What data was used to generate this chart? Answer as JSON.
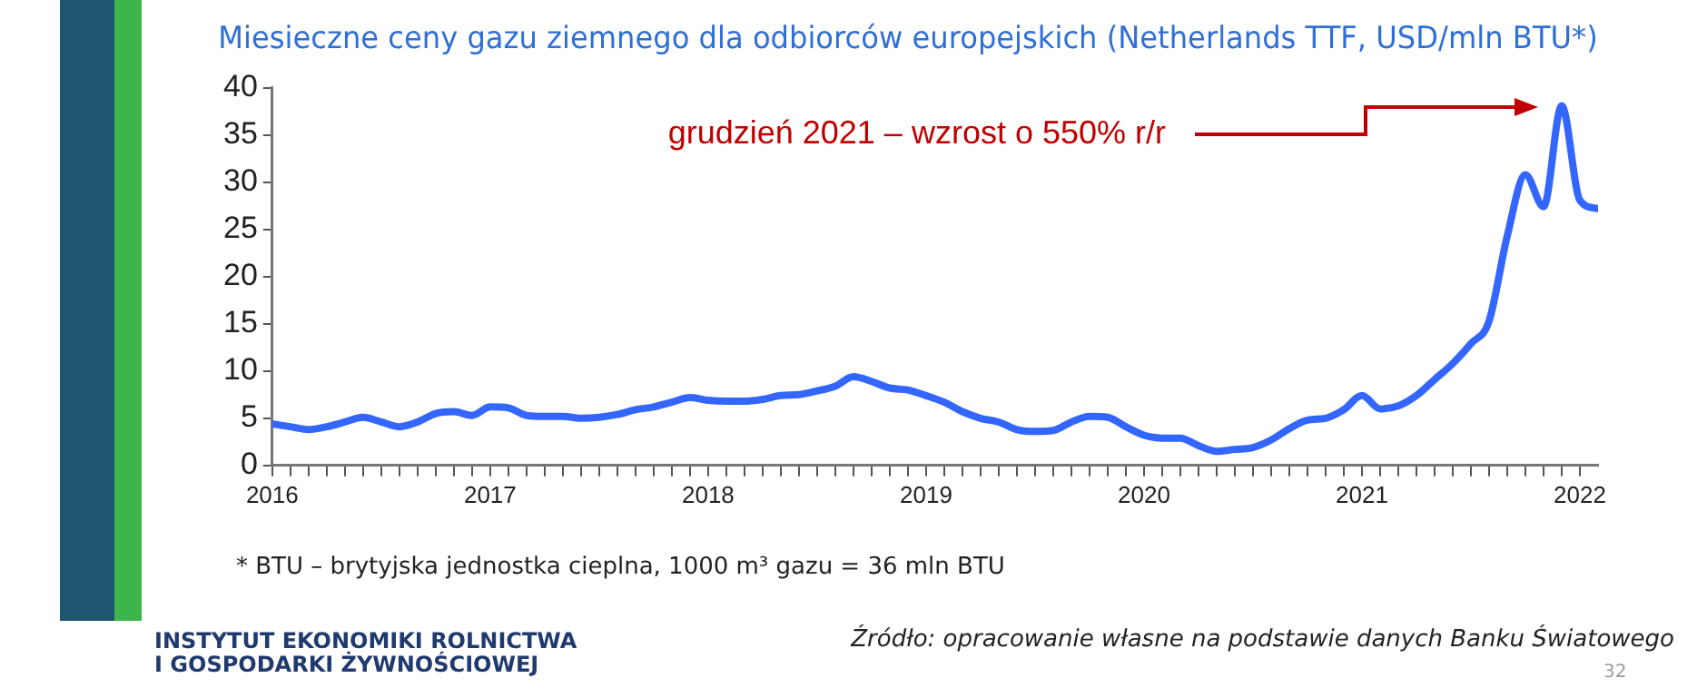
{
  "chart_data": {
    "type": "line",
    "title": "Miesieczne ceny gazu ziemnego dla odbiorców europejskich (Netherlands TTF, USD/mln BTU*)",
    "x": [
      "2016-01",
      "2016-02",
      "2016-03",
      "2016-04",
      "2016-05",
      "2016-06",
      "2016-07",
      "2016-08",
      "2016-09",
      "2016-10",
      "2016-11",
      "2016-12",
      "2017-01",
      "2017-02",
      "2017-03",
      "2017-04",
      "2017-05",
      "2017-06",
      "2017-07",
      "2017-08",
      "2017-09",
      "2017-10",
      "2017-11",
      "2017-12",
      "2018-01",
      "2018-02",
      "2018-03",
      "2018-04",
      "2018-05",
      "2018-06",
      "2018-07",
      "2018-08",
      "2018-09",
      "2018-10",
      "2018-11",
      "2018-12",
      "2019-01",
      "2019-02",
      "2019-03",
      "2019-04",
      "2019-05",
      "2019-06",
      "2019-07",
      "2019-08",
      "2019-09",
      "2019-10",
      "2019-11",
      "2019-12",
      "2020-01",
      "2020-02",
      "2020-03",
      "2020-04",
      "2020-05",
      "2020-06",
      "2020-07",
      "2020-08",
      "2020-09",
      "2020-10",
      "2020-11",
      "2020-12",
      "2021-01",
      "2021-02",
      "2021-03",
      "2021-04",
      "2021-05",
      "2021-06",
      "2021-07",
      "2021-08",
      "2021-09",
      "2021-10",
      "2021-11",
      "2021-12",
      "2022-01",
      "2022-02"
    ],
    "series": [
      {
        "color": "#3366ff",
        "values": [
          4.4,
          4.1,
          3.8,
          4.1,
          4.6,
          5.1,
          4.6,
          4.1,
          4.6,
          5.5,
          5.7,
          5.3,
          6.2,
          6.1,
          5.3,
          5.2,
          5.2,
          5.0,
          5.1,
          5.4,
          5.9,
          6.2,
          6.7,
          7.2,
          6.9,
          6.8,
          6.8,
          7.0,
          7.4,
          7.5,
          7.9,
          8.4,
          9.4,
          8.9,
          8.2,
          8.0,
          7.4,
          6.7,
          5.7,
          5.0,
          4.6,
          3.8,
          3.6,
          3.7,
          4.6,
          5.2,
          5.1,
          4.1,
          3.2,
          2.9,
          2.9,
          2.1,
          1.5,
          1.7,
          1.9,
          2.7,
          3.9,
          4.8,
          5.0,
          5.9,
          7.4,
          6.0,
          6.3,
          7.4,
          9.1,
          10.8,
          12.9,
          15.3,
          24.3,
          30.8,
          27.4,
          38.1,
          28.1,
          27.2
        ]
      }
    ],
    "xlim": [
      "2016",
      "2022-02"
    ],
    "xticks": [
      "2016",
      {
        "value": "2016-02",
        "label": null
      },
      {
        "value": "2016-03",
        "label": null
      },
      {
        "value": "2016-04",
        "label": null
      },
      {
        "value": "2016-05",
        "label": null
      },
      {
        "value": "2016-06",
        "label": null
      },
      {
        "value": "2016-07",
        "label": null
      },
      {
        "value": "2016-08",
        "label": null
      },
      {
        "value": "2016-09",
        "label": null
      },
      {
        "value": "2016-10",
        "label": null
      },
      {
        "value": "2016-11",
        "label": null
      },
      {
        "value": "2016-12",
        "label": null
      },
      "2017",
      {
        "value": "2017-02",
        "label": null
      },
      {
        "value": "2017-03",
        "label": null
      },
      {
        "value": "2017-04",
        "label": null
      },
      {
        "value": "2017-05",
        "label": null
      },
      {
        "value": "2017-06",
        "label": null
      },
      {
        "value": "2017-07",
        "label": null
      },
      {
        "value": "2017-08",
        "label": null
      },
      {
        "value": "2017-09",
        "label": null
      },
      {
        "value": "2017-10",
        "label": null
      },
      {
        "value": "2017-11",
        "label": null
      },
      {
        "value": "2017-12",
        "label": null
      },
      "2018",
      {
        "value": "2018-02",
        "label": null
      },
      {
        "value": "2018-03",
        "label": null
      },
      {
        "value": "2018-04",
        "label": null
      },
      {
        "value": "2018-05",
        "label": null
      },
      {
        "value": "2018-06",
        "label": null
      },
      {
        "value": "2018-07",
        "label": null
      },
      {
        "value": "2018-08",
        "label": null
      },
      {
        "value": "2018-09",
        "label": null
      },
      {
        "value": "2018-10",
        "label": null
      },
      {
        "value": "2018-11",
        "label": null
      },
      {
        "value": "2018-12",
        "label": null
      },
      "2019",
      {
        "value": "2019-02",
        "label": null
      },
      {
        "value": "2019-03",
        "label": null
      },
      {
        "value": "2019-04",
        "label": null
      },
      {
        "value": "2019-05",
        "label": null
      },
      {
        "value": "2019-06",
        "label": null
      },
      {
        "value": "2019-07",
        "label": null
      },
      {
        "value": "2019-08",
        "label": null
      },
      {
        "value": "2019-09",
        "label": null
      },
      {
        "value": "2019-10",
        "label": null
      },
      {
        "value": "2019-11",
        "label": null
      },
      {
        "value": "2019-12",
        "label": null
      },
      "2020",
      {
        "value": "2020-02",
        "label": null
      },
      {
        "value": "2020-03",
        "label": null
      },
      {
        "value": "2020-04",
        "label": null
      },
      {
        "value": "2020-05",
        "label": null
      },
      {
        "value": "2020-06",
        "label": null
      },
      {
        "value": "2020-07",
        "label": null
      },
      {
        "value": "2020-08",
        "label": null
      },
      {
        "value": "2020-09",
        "label": null
      },
      {
        "value": "2020-10",
        "label": null
      },
      {
        "value": "2020-11",
        "label": null
      },
      {
        "value": "2020-12",
        "label": null
      },
      "2021",
      {
        "value": "2021-02",
        "label": null
      },
      {
        "value": "2021-03",
        "label": null
      },
      {
        "value": "2021-04",
        "label": null
      },
      {
        "value": "2021-05",
        "label": null
      },
      {
        "value": "2021-06",
        "label": null
      },
      {
        "value": "2021-07",
        "label": null
      },
      {
        "value": "2021-08",
        "label": null
      },
      {
        "value": "2021-09",
        "label": null
      },
      {
        "value": "2021-10",
        "label": null
      },
      {
        "value": "2021-11",
        "label": null
      },
      {
        "value": "2021-12",
        "label": null
      },
      "2022"
    ],
    "ylim": [
      0,
      40
    ],
    "yticks": [
      0,
      5,
      10,
      15,
      20,
      25,
      30,
      35,
      40
    ],
    "grid": false,
    "legend": false,
    "marker": "none",
    "line_style": "solid",
    "annotations": [
      "grudzień 2021 – wzrost o 550% r/r",
      "* BTU – brytyjska jednostka cieplna, 1000 m³ gazu = 36 mln BTU",
      "Źródło: opracowanie własne na podstawie danych Banku Światowego",
      "INSTYTUT EKONOMIKI ROLNICTWA",
      "I GOSPODARKI ŻYWNOŚCIOWEJ",
      "32"
    ]
  }
}
